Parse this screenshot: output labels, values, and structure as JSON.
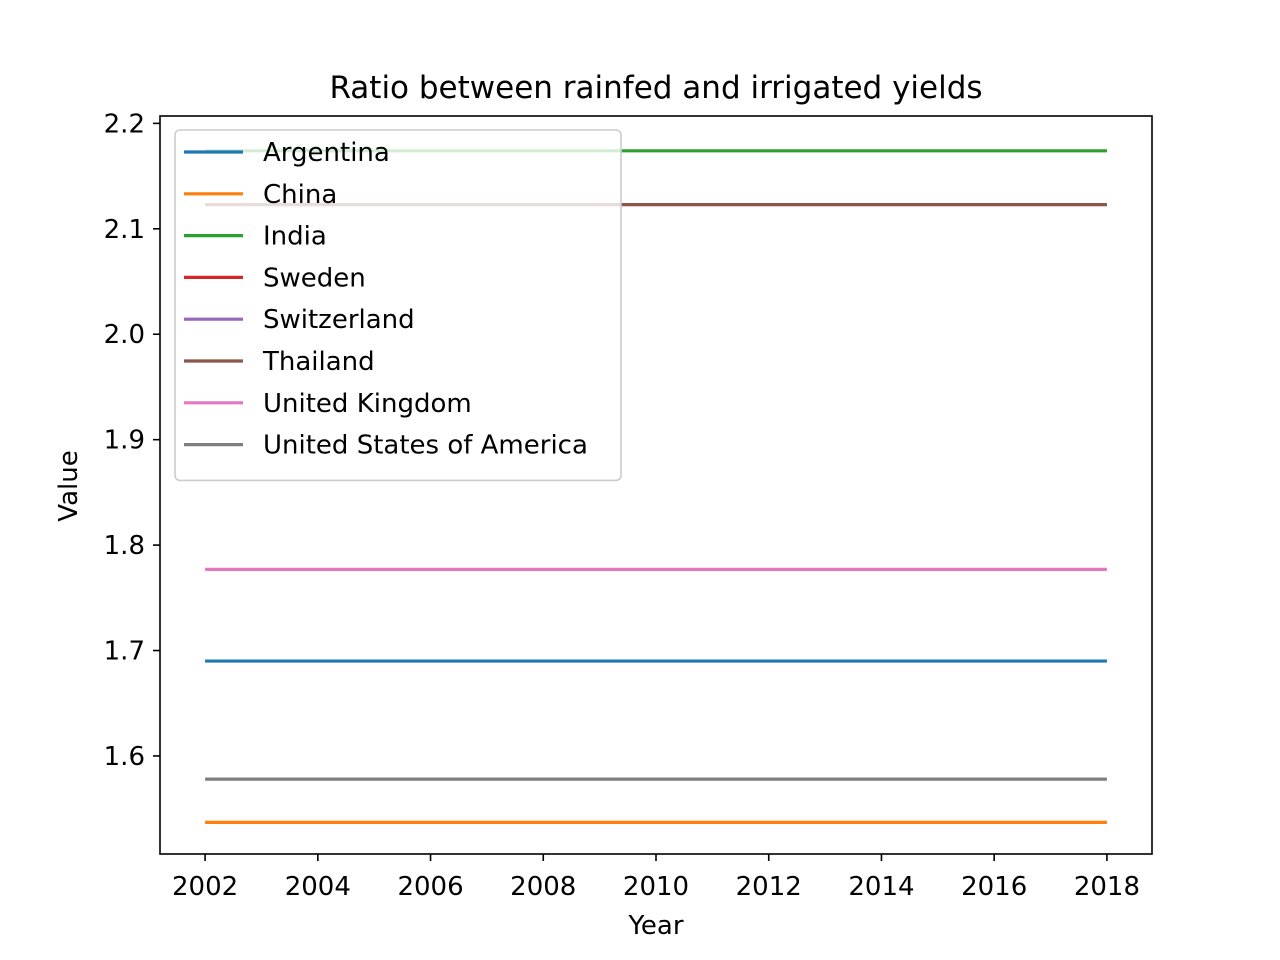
{
  "chart_data": {
    "type": "line",
    "title": "Ratio between rainfed and irrigated yields",
    "xlabel": "Year",
    "ylabel": "Value",
    "xlim": [
      2001.2,
      2018.8
    ],
    "ylim": [
      1.507,
      2.207
    ],
    "x_ticks": [
      2002,
      2004,
      2006,
      2008,
      2010,
      2012,
      2014,
      2016,
      2018
    ],
    "y_ticks": [
      1.6,
      1.7,
      1.8,
      1.9,
      2.0,
      2.1,
      2.2
    ],
    "y_tick_labels": [
      "1.6",
      "1.7",
      "1.8",
      "1.9",
      "2.0",
      "2.1",
      "2.2"
    ],
    "x": [
      2002,
      2003,
      2004,
      2005,
      2006,
      2007,
      2008,
      2009,
      2010,
      2011,
      2012,
      2013,
      2014,
      2015,
      2016,
      2017,
      2018
    ],
    "grid": false,
    "legend_position": "upper-left",
    "series": [
      {
        "name": "Argentina",
        "color": "#1f77b4",
        "values": [
          1.69,
          1.69,
          1.69,
          1.69,
          1.69,
          1.69,
          1.69,
          1.69,
          1.69,
          1.69,
          1.69,
          1.69,
          1.69,
          1.69,
          1.69,
          1.69,
          1.69
        ]
      },
      {
        "name": "China",
        "color": "#ff7f0e",
        "values": [
          1.537,
          1.537,
          1.537,
          1.537,
          1.537,
          1.537,
          1.537,
          1.537,
          1.537,
          1.537,
          1.537,
          1.537,
          1.537,
          1.537,
          1.537,
          1.537,
          1.537
        ]
      },
      {
        "name": "India",
        "color": "#2ca02c",
        "values": [
          2.174,
          2.174,
          2.174,
          2.174,
          2.174,
          2.174,
          2.174,
          2.174,
          2.174,
          2.174,
          2.174,
          2.174,
          2.174,
          2.174,
          2.174,
          2.174,
          2.174
        ]
      },
      {
        "name": "Sweden",
        "color": "#d62728",
        "values": [
          2.123,
          2.123,
          2.123,
          2.123,
          2.123,
          2.123,
          2.123,
          2.123,
          2.123,
          2.123,
          2.123,
          2.123,
          2.123,
          2.123,
          2.123,
          2.123,
          2.123
        ]
      },
      {
        "name": "Switzerland",
        "color": "#9467bd",
        "values": [
          2.123,
          2.123,
          2.123,
          2.123,
          2.123,
          2.123,
          2.123,
          2.123,
          2.123,
          2.123,
          2.123,
          2.123,
          2.123,
          2.123,
          2.123,
          2.123,
          2.123
        ]
      },
      {
        "name": "Thailand",
        "color": "#8c564b",
        "values": [
          2.123,
          2.123,
          2.123,
          2.123,
          2.123,
          2.123,
          2.123,
          2.123,
          2.123,
          2.123,
          2.123,
          2.123,
          2.123,
          2.123,
          2.123,
          2.123,
          2.123
        ]
      },
      {
        "name": "United Kingdom",
        "color": "#e377c2",
        "values": [
          1.777,
          1.777,
          1.777,
          1.777,
          1.777,
          1.777,
          1.777,
          1.777,
          1.777,
          1.777,
          1.777,
          1.777,
          1.777,
          1.777,
          1.777,
          1.777,
          1.777
        ]
      },
      {
        "name": "United States of America",
        "color": "#7f7f7f",
        "values": [
          1.578,
          1.578,
          1.578,
          1.578,
          1.578,
          1.578,
          1.578,
          1.578,
          1.578,
          1.578,
          1.578,
          1.578,
          1.578,
          1.578,
          1.578,
          1.578,
          1.578
        ]
      }
    ]
  }
}
